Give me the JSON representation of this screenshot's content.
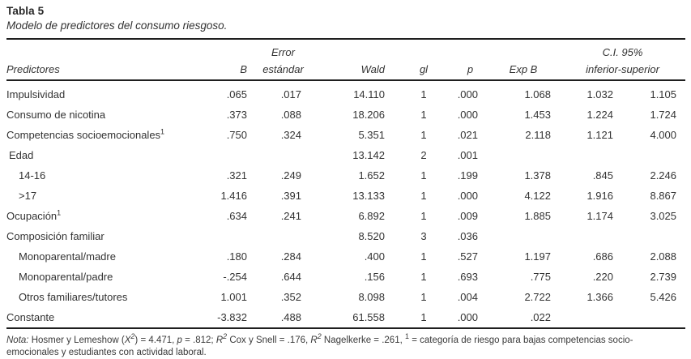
{
  "title": "Tabla 5",
  "subtitle": "Modelo de predictores del consumo riesgoso.",
  "table": {
    "headers": {
      "col_predictores": "Predictores",
      "col_b": "B",
      "col_error_line1": "Error",
      "col_error_line2": "estándar",
      "col_wald": "Wald",
      "col_gl": "gl",
      "col_p": "p",
      "col_expb": "Exp B",
      "col_ci_line1": "C.I. 95%",
      "col_ci_line2": "inferior-superior"
    },
    "rows": [
      {
        "label": "Impulsividad",
        "indent": 0,
        "b": ".065",
        "se": ".017",
        "wald": "14.110",
        "gl": "1",
        "p": ".000",
        "expb": "1.068",
        "ci_low": "1.032",
        "ci_high": "1.105"
      },
      {
        "label": "Consumo de nicotina",
        "indent": 0,
        "b": ".373",
        "se": ".088",
        "wald": "18.206",
        "gl": "1",
        "p": ".000",
        "expb": "1.453",
        "ci_low": "1.224",
        "ci_high": "1.724"
      },
      {
        "label": "Competencias socioemocionales",
        "sup": "1",
        "indent": 0,
        "b": ".750",
        "se": ".324",
        "wald": "5.351",
        "gl": "1",
        "p": ".021",
        "expb": "2.118",
        "ci_low": "1.121",
        "ci_high": "4.000"
      },
      {
        "label": "Edad",
        "indent": 1,
        "b": "",
        "se": "",
        "wald": "13.142",
        "gl": "2",
        "p": ".001",
        "expb": "",
        "ci_low": "",
        "ci_high": ""
      },
      {
        "label": "14-16",
        "indent": 2,
        "b": ".321",
        "se": ".249",
        "wald": "1.652",
        "gl": "1",
        "p": ".199",
        "expb": "1.378",
        "ci_low": ".845",
        "ci_high": "2.246"
      },
      {
        "label": ">17",
        "indent": 2,
        "b": "1.416",
        "se": ".391",
        "wald": "13.133",
        "gl": "1",
        "p": ".000",
        "expb": "4.122",
        "ci_low": "1.916",
        "ci_high": "8.867"
      },
      {
        "label": "Ocupación",
        "sup": "1",
        "indent": 0,
        "b": ".634",
        "se": ".241",
        "wald": "6.892",
        "gl": "1",
        "p": ".009",
        "expb": "1.885",
        "ci_low": "1.174",
        "ci_high": "3.025"
      },
      {
        "label": "Composición familiar",
        "indent": 0,
        "b": "",
        "se": "",
        "wald": "8.520",
        "gl": "3",
        "p": ".036",
        "expb": "",
        "ci_low": "",
        "ci_high": ""
      },
      {
        "label": "Monoparental/madre",
        "indent": 2,
        "b": ".180",
        "se": ".284",
        "wald": ".400",
        "gl": "1",
        "p": ".527",
        "expb": "1.197",
        "ci_low": ".686",
        "ci_high": "2.088"
      },
      {
        "label": "Monoparental/padre",
        "indent": 2,
        "b": "-.254",
        "se": ".644",
        "wald": ".156",
        "gl": "1",
        "p": ".693",
        "expb": ".775",
        "ci_low": ".220",
        "ci_high": "2.739"
      },
      {
        "label": "Otros familiares/tutores",
        "indent": 2,
        "b": "1.001",
        "se": ".352",
        "wald": "8.098",
        "gl": "1",
        "p": ".004",
        "expb": "2.722",
        "ci_low": "1.366",
        "ci_high": "5.426"
      },
      {
        "label": "Constante",
        "indent": 0,
        "b": "-3.832",
        "se": ".488",
        "wald": "61.558",
        "gl": "1",
        "p": ".000",
        "expb": ".022",
        "ci_low": "",
        "ci_high": ""
      }
    ]
  },
  "footnote": {
    "segments": [
      {
        "text": "Nota:",
        "style": "italic"
      },
      {
        "text": " Hosmer y Lemeshow (",
        "style": ""
      },
      {
        "text": "X",
        "style": "italic"
      },
      {
        "text": "2",
        "style": "sup-italic"
      },
      {
        "text": ") = 4.471, ",
        "style": ""
      },
      {
        "text": "p",
        "style": "italic"
      },
      {
        "text": " = .812; ",
        "style": ""
      },
      {
        "text": "R",
        "style": "italic"
      },
      {
        "text": "2",
        "style": "sup-italic"
      },
      {
        "text": " Cox y Snell = .176, ",
        "style": ""
      },
      {
        "text": "R",
        "style": "italic"
      },
      {
        "text": "2",
        "style": "sup-italic"
      },
      {
        "text": " Nagelkerke = .261, ",
        "style": ""
      },
      {
        "text": "1",
        "style": "sup"
      },
      {
        "text": " = categoría de riesgo para bajas competencias socio-emocionales y estudiantes con actividad laboral.",
        "style": ""
      }
    ]
  }
}
